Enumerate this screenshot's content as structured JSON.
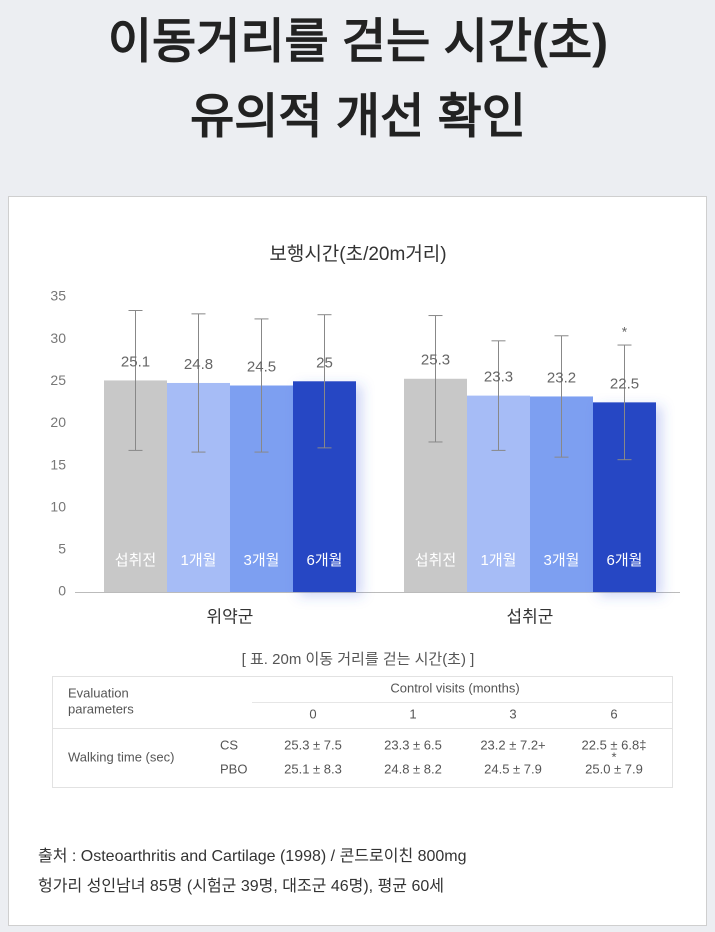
{
  "title_lines": [
    "이동거리를 걷는 시간(초)",
    "유의적 개선 확인"
  ],
  "chart_data": {
    "type": "bar",
    "title": "보행시간(초/20m거리)",
    "categories": [
      "위약군",
      "섭취군"
    ],
    "series": [
      {
        "name": "섭취전",
        "color": "#c8c8c8",
        "values": [
          25.1,
          25.3
        ],
        "errors": [
          8.3,
          7.5
        ]
      },
      {
        "name": "1개월",
        "color": "#a6bcf6",
        "values": [
          24.8,
          23.3
        ],
        "errors": [
          8.2,
          6.5
        ]
      },
      {
        "name": "3개월",
        "color": "#7d9ff1",
        "values": [
          24.5,
          23.2
        ],
        "errors": [
          7.9,
          7.2
        ]
      },
      {
        "name": "6개월",
        "color": "#2547c4",
        "values": [
          25,
          22.5
        ],
        "errors": [
          7.9,
          6.8
        ]
      }
    ],
    "annotation": "*",
    "ylim": [
      0,
      35
    ],
    "yticks": [
      0,
      5,
      10,
      15,
      20,
      25,
      30,
      35
    ]
  },
  "table": {
    "caption": "[ 표. 20m 이동 거리를 걷는 시간(초) ]",
    "param_header": [
      "Evaluation",
      "parameters"
    ],
    "visits_header": "Control visits (months)",
    "columns": [
      "0",
      "1",
      "3",
      "6"
    ],
    "row_label": "Walking time (sec)",
    "rows": [
      {
        "group": "CS",
        "cells": [
          "25.3 ± 7.5",
          "23.3 ± 6.5",
          "23.2 ± 7.2+",
          "22.5 ± 6.8‡"
        ],
        "mark": "*"
      },
      {
        "group": "PBO",
        "cells": [
          "25.1 ± 8.3",
          "24.8 ± 8.2",
          "24.5 ± 7.9",
          "25.0 ± 7.9"
        ]
      }
    ]
  },
  "source": [
    "출처 :  Osteoarthritis and Cartilage (1998) / 콘드로이친 800mg",
    "헝가리 성인남녀 85명 (시험군 39명, 대조군 46명), 평균 60세"
  ]
}
